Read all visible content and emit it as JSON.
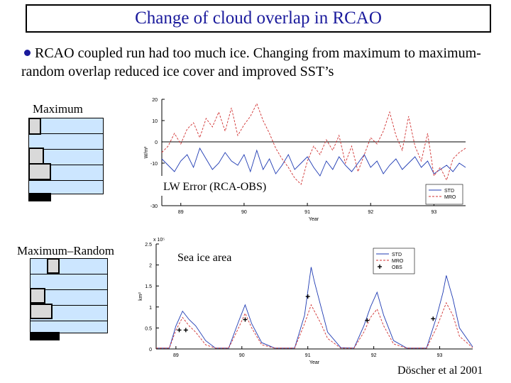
{
  "title": "Change of cloud overlap in RCAO",
  "bullet": "RCAO coupled run had too much ice. Changing from maximum to maximum-random overlap reduced ice cover and improved SST’s",
  "diagram": {
    "maximum_label": "Maximum",
    "maxrandom_label": "Maximum–Random"
  },
  "credit": "Döscher et al 2001",
  "chart_data": [
    {
      "type": "line",
      "annotation": "LW Error (RCA-OBS)",
      "ylabel": "W/m²",
      "xlabel": "Year",
      "ylim": [
        -30,
        20
      ],
      "yticks": [
        -30,
        -20,
        -10,
        0,
        10,
        20
      ],
      "xticks": [
        89,
        90,
        91,
        92,
        93
      ],
      "xlim": [
        88.7,
        93.5
      ],
      "grid": false,
      "reference_line": 0,
      "legend": "bottom-right",
      "series": [
        {
          "name": "STD",
          "color": "#1f3bb3",
          "dash": "solid",
          "x": [
            88.7,
            88.8,
            88.9,
            89.0,
            89.1,
            89.2,
            89.3,
            89.4,
            89.5,
            89.6,
            89.7,
            89.8,
            89.9,
            90.0,
            90.1,
            90.2,
            90.3,
            90.4,
            90.5,
            90.6,
            90.7,
            90.8,
            90.9,
            91.0,
            91.1,
            91.2,
            91.3,
            91.4,
            91.5,
            91.6,
            91.7,
            91.8,
            91.9,
            92.0,
            92.1,
            92.2,
            92.3,
            92.4,
            92.5,
            92.6,
            92.7,
            92.8,
            92.9,
            93.0,
            93.1,
            93.2,
            93.3,
            93.4,
            93.5
          ],
          "y": [
            -8,
            -11,
            -14,
            -9,
            -6,
            -12,
            -3,
            -8,
            -13,
            -10,
            -5,
            -9,
            -11,
            -6,
            -14,
            -4,
            -13,
            -8,
            -15,
            -11,
            -6,
            -13,
            -10,
            -7,
            -12,
            -16,
            -9,
            -13,
            -7,
            -11,
            -14,
            -10,
            -6,
            -12,
            -9,
            -15,
            -11,
            -8,
            -13,
            -10,
            -7,
            -12,
            -9,
            -15,
            -13,
            -11,
            -14,
            -10,
            -12
          ]
        },
        {
          "name": "MRO",
          "color": "#d03030",
          "dash": "dashed",
          "x": [
            88.7,
            88.8,
            88.9,
            89.0,
            89.1,
            89.2,
            89.3,
            89.4,
            89.5,
            89.6,
            89.7,
            89.8,
            89.9,
            90.0,
            90.1,
            90.2,
            90.3,
            90.4,
            90.5,
            90.6,
            90.7,
            90.8,
            90.9,
            91.0,
            91.1,
            91.2,
            91.3,
            91.4,
            91.5,
            91.6,
            91.7,
            91.8,
            91.9,
            92.0,
            92.1,
            92.2,
            92.3,
            92.4,
            92.5,
            92.6,
            92.7,
            92.8,
            92.9,
            93.0,
            93.1,
            93.2,
            93.3,
            93.4,
            93.5
          ],
          "y": [
            -5,
            -2,
            4,
            -1,
            6,
            9,
            2,
            11,
            7,
            14,
            5,
            16,
            3,
            8,
            12,
            18,
            10,
            4,
            -3,
            -8,
            -12,
            -17,
            -20,
            -9,
            -2,
            -6,
            1,
            -4,
            3,
            -10,
            -2,
            -14,
            -6,
            2,
            -1,
            5,
            14,
            3,
            -4,
            12,
            -2,
            -9,
            4,
            -16,
            -12,
            -18,
            -8,
            -5,
            -3
          ]
        }
      ]
    },
    {
      "type": "line",
      "annotation": "Sea ice area",
      "ylabel": "km²",
      "yscale_label": "x 10⁵",
      "xlabel": "Year",
      "ylim": [
        0,
        2.5
      ],
      "yticks": [
        0,
        0.5,
        1,
        1.5,
        2,
        2.5
      ],
      "xticks": [
        89,
        90,
        91,
        92,
        93
      ],
      "xlim": [
        88.7,
        93.5
      ],
      "grid": false,
      "legend": "top-center",
      "series": [
        {
          "name": "STD",
          "color": "#1f3bb3",
          "dash": "solid",
          "x": [
            88.7,
            88.9,
            89.0,
            89.1,
            89.2,
            89.3,
            89.45,
            89.6,
            89.8,
            89.95,
            90.05,
            90.15,
            90.3,
            90.5,
            90.8,
            90.95,
            91.05,
            91.1,
            91.2,
            91.3,
            91.5,
            91.7,
            91.85,
            91.95,
            92.05,
            92.15,
            92.3,
            92.5,
            92.8,
            92.95,
            93.05,
            93.1,
            93.2,
            93.3,
            93.5
          ],
          "y": [
            0.02,
            0.02,
            0.55,
            0.9,
            0.7,
            0.55,
            0.2,
            0.02,
            0.02,
            0.65,
            1.05,
            0.6,
            0.15,
            0.02,
            0.02,
            0.8,
            1.95,
            1.6,
            1.0,
            0.4,
            0.03,
            0.02,
            0.55,
            1.0,
            1.35,
            0.8,
            0.2,
            0.02,
            0.02,
            0.75,
            1.35,
            1.75,
            1.2,
            0.5,
            0.05
          ]
        },
        {
          "name": "MRO",
          "color": "#d03030",
          "dash": "dashed",
          "x": [
            88.7,
            88.9,
            89.0,
            89.1,
            89.2,
            89.3,
            89.45,
            89.6,
            89.8,
            89.95,
            90.05,
            90.15,
            90.3,
            90.5,
            90.8,
            90.95,
            91.05,
            91.1,
            91.2,
            91.3,
            91.5,
            91.7,
            91.85,
            91.95,
            92.05,
            92.15,
            92.3,
            92.5,
            92.8,
            92.95,
            93.05,
            93.1,
            93.2,
            93.3,
            93.5
          ],
          "y": [
            0.02,
            0.02,
            0.45,
            0.75,
            0.55,
            0.4,
            0.1,
            0.02,
            0.02,
            0.5,
            0.85,
            0.5,
            0.1,
            0.02,
            0.02,
            0.6,
            1.05,
            0.9,
            0.6,
            0.25,
            0.02,
            0.02,
            0.4,
            0.75,
            0.95,
            0.55,
            0.12,
            0.02,
            0.02,
            0.5,
            0.9,
            1.1,
            0.8,
            0.3,
            0.03
          ]
        },
        {
          "name": "OBS",
          "color": "#000000",
          "marker": "+",
          "x": [
            89.05,
            89.15,
            90.05,
            91.0,
            91.9,
            92.9
          ],
          "y": [
            0.45,
            0.45,
            0.7,
            1.25,
            0.68,
            0.72
          ]
        }
      ]
    }
  ]
}
